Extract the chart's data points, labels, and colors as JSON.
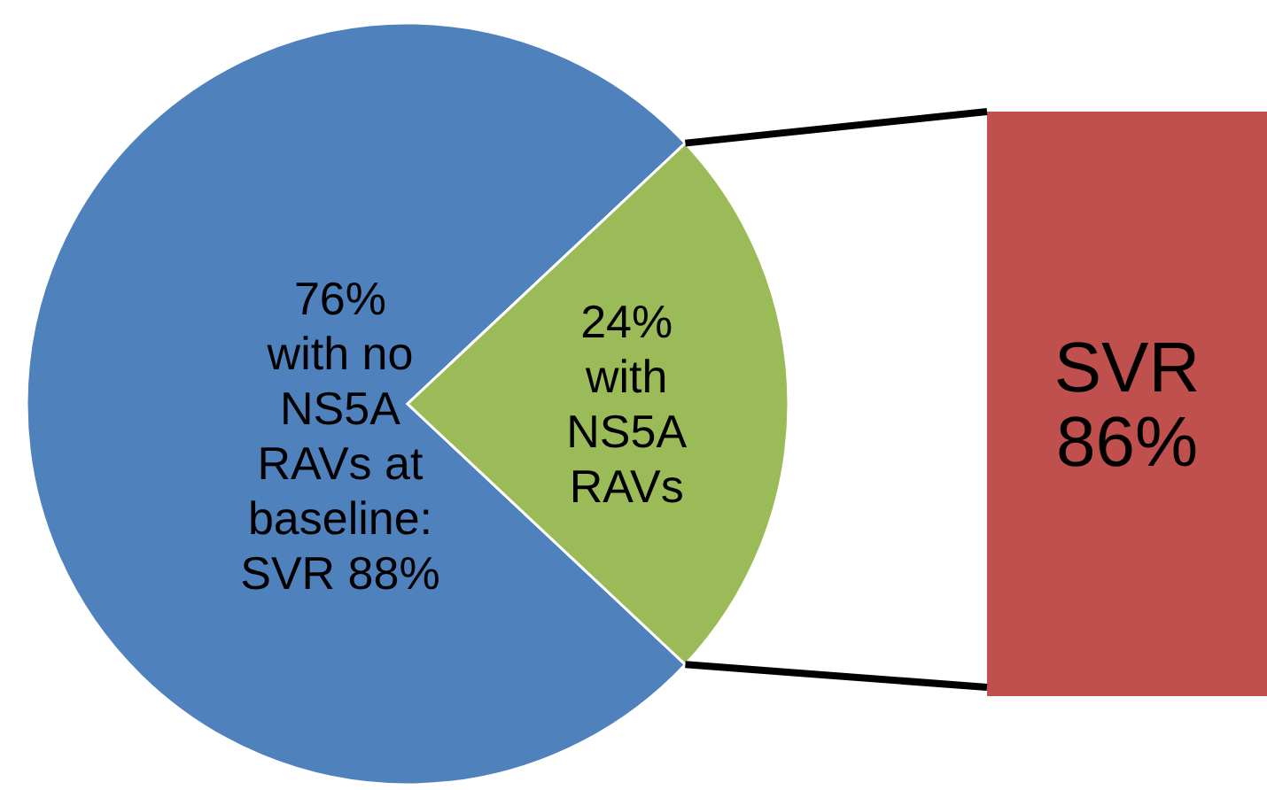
{
  "chart_data": {
    "type": "pie",
    "categories": [
      "with no NS5A RAVs at baseline: SVR 88%",
      "with NS5A RAVs"
    ],
    "values": [
      76,
      24
    ],
    "value_labels": [
      "76%",
      "24%"
    ],
    "colors": [
      "#4f81bd",
      "#9bbb59"
    ],
    "annotations": [
      "SVR 86%"
    ]
  }
}
